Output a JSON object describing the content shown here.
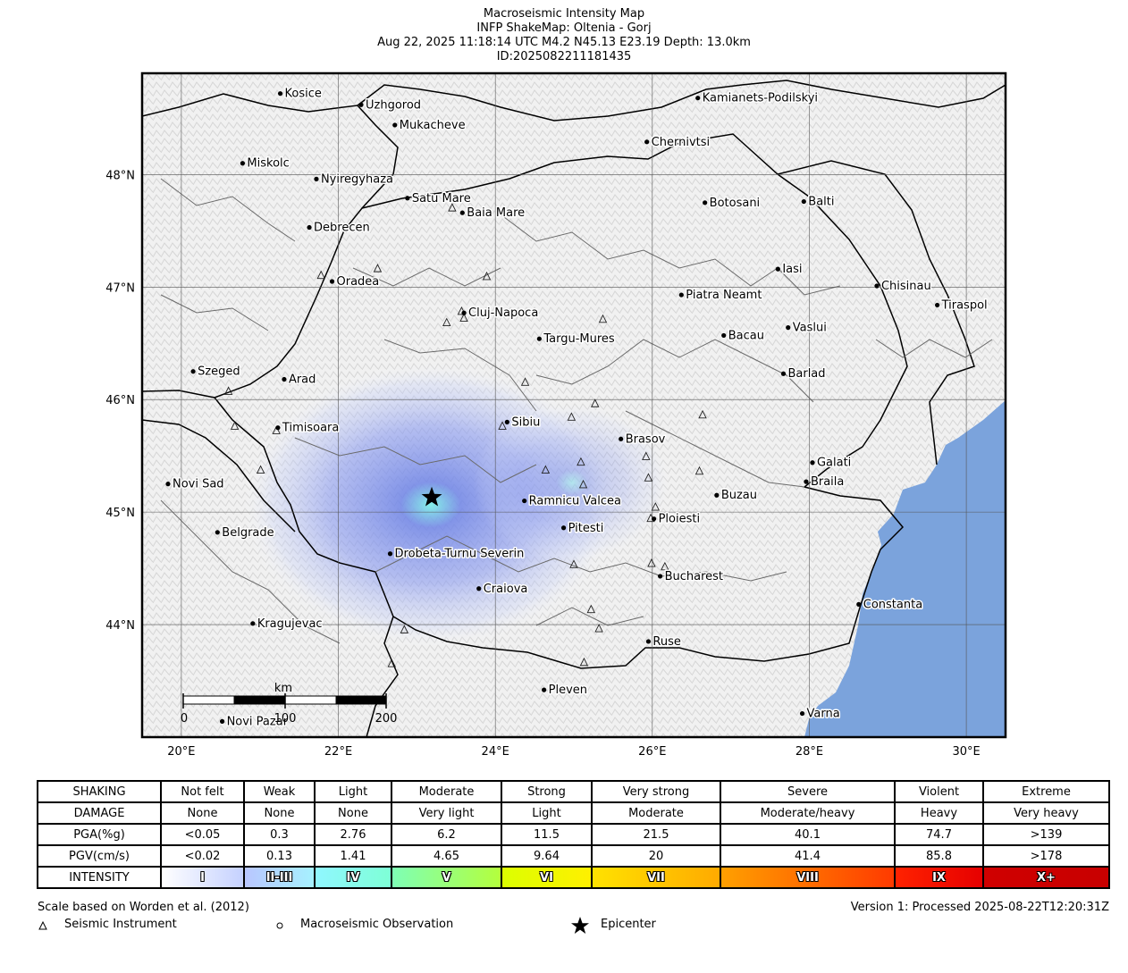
{
  "title": {
    "line1": "Macroseismic Intensity Map",
    "line2": "INFP ShakeMap: Oltenia - Gorj",
    "line3": "Aug 22, 2025 11:18:14 UTC M4.2 N45.13 E23.19 Depth: 13.0km",
    "line4": "ID:20250822111814​35"
  },
  "map": {
    "lon_range": [
      19.5,
      30.5
    ],
    "lat_range": [
      43.0,
      48.9
    ],
    "lon_ticks": [
      "20°E",
      "22°E",
      "24°E",
      "26°E",
      "28°E",
      "30°E"
    ],
    "lat_ticks": [
      "44°N",
      "45°N",
      "46°N",
      "47°N",
      "48°N"
    ],
    "epicenter": {
      "lon": 23.19,
      "lat": 45.13
    },
    "colors": {
      "sea": "#7ba3dc",
      "intensity_core": "#7ff0e8",
      "intensity_mid": "#6f84e6",
      "intensity_outer": "#c8d2f8",
      "land": "#eeeeee"
    },
    "scale_bar": {
      "unit": "km",
      "labels": [
        "0",
        "100",
        "200"
      ]
    },
    "cities": [
      {
        "name": "Kosice",
        "lon": 21.26,
        "lat": 48.72
      },
      {
        "name": "Uzhgorod",
        "lon": 22.29,
        "lat": 48.62
      },
      {
        "name": "Mukacheve",
        "lon": 22.72,
        "lat": 48.44
      },
      {
        "name": "Kamianets-Podilskyi",
        "lon": 26.58,
        "lat": 48.68
      },
      {
        "name": "Chernivtsi",
        "lon": 25.93,
        "lat": 48.29
      },
      {
        "name": "Miskolc",
        "lon": 20.78,
        "lat": 48.1
      },
      {
        "name": "Nyiregyhaza",
        "lon": 21.72,
        "lat": 47.96
      },
      {
        "name": "Satu Mare",
        "lon": 22.88,
        "lat": 47.79
      },
      {
        "name": "Baia Mare",
        "lon": 23.58,
        "lat": 47.66
      },
      {
        "name": "Botosani",
        "lon": 26.67,
        "lat": 47.75
      },
      {
        "name": "Balti",
        "lon": 27.93,
        "lat": 47.76
      },
      {
        "name": "Debrecen",
        "lon": 21.63,
        "lat": 47.53
      },
      {
        "name": "Oradea",
        "lon": 21.92,
        "lat": 47.05
      },
      {
        "name": "Iasi",
        "lon": 27.6,
        "lat": 47.16
      },
      {
        "name": "Chisinau",
        "lon": 28.86,
        "lat": 47.01
      },
      {
        "name": "Piatra Neamt",
        "lon": 26.37,
        "lat": 46.93
      },
      {
        "name": "Tiraspol",
        "lon": 29.63,
        "lat": 46.84
      },
      {
        "name": "Cluj-Napoca",
        "lon": 23.6,
        "lat": 46.77
      },
      {
        "name": "Targu-Mures",
        "lon": 24.56,
        "lat": 46.54
      },
      {
        "name": "Bacau",
        "lon": 26.91,
        "lat": 46.57
      },
      {
        "name": "Vaslui",
        "lon": 27.73,
        "lat": 46.64
      },
      {
        "name": "Szeged",
        "lon": 20.15,
        "lat": 46.25
      },
      {
        "name": "Arad",
        "lon": 21.31,
        "lat": 46.18
      },
      {
        "name": "Barlad",
        "lon": 27.67,
        "lat": 46.23
      },
      {
        "name": "Sibiu",
        "lon": 24.15,
        "lat": 45.8
      },
      {
        "name": "Timisoara",
        "lon": 21.23,
        "lat": 45.75
      },
      {
        "name": "Brasov",
        "lon": 25.6,
        "lat": 45.65
      },
      {
        "name": "Galati",
        "lon": 28.04,
        "lat": 45.44
      },
      {
        "name": "Novi Sad",
        "lon": 19.83,
        "lat": 45.25
      },
      {
        "name": "Braila",
        "lon": 27.96,
        "lat": 45.27
      },
      {
        "name": "Ramnicu Valcea",
        "lon": 24.37,
        "lat": 45.1
      },
      {
        "name": "Buzau",
        "lon": 26.82,
        "lat": 45.15
      },
      {
        "name": "Ploiesti",
        "lon": 26.02,
        "lat": 44.94
      },
      {
        "name": "Belgrade",
        "lon": 20.46,
        "lat": 44.82
      },
      {
        "name": "Pitesti",
        "lon": 24.87,
        "lat": 44.86
      },
      {
        "name": "Drobeta-Turnu Severin",
        "lon": 22.66,
        "lat": 44.63
      },
      {
        "name": "Bucharest",
        "lon": 26.1,
        "lat": 44.43
      },
      {
        "name": "Craiova",
        "lon": 23.79,
        "lat": 44.32
      },
      {
        "name": "Constanta",
        "lon": 28.63,
        "lat": 44.18
      },
      {
        "name": "Kragujevac",
        "lon": 20.91,
        "lat": 44.01
      },
      {
        "name": "Ruse",
        "lon": 25.95,
        "lat": 43.85
      },
      {
        "name": "Pleven",
        "lon": 24.62,
        "lat": 43.42
      },
      {
        "name": "Novi Pazar",
        "lon": 20.52,
        "lat": 43.14
      },
      {
        "name": "Varna",
        "lon": 27.91,
        "lat": 43.21
      }
    ],
    "stations": [
      {
        "lon": 23.45,
        "lat": 47.7
      },
      {
        "lon": 22.5,
        "lat": 47.16
      },
      {
        "lon": 21.78,
        "lat": 47.1
      },
      {
        "lon": 23.89,
        "lat": 47.09
      },
      {
        "lon": 23.57,
        "lat": 46.78
      },
      {
        "lon": 23.6,
        "lat": 46.72
      },
      {
        "lon": 23.38,
        "lat": 46.68
      },
      {
        "lon": 25.37,
        "lat": 46.71
      },
      {
        "lon": 24.38,
        "lat": 46.15
      },
      {
        "lon": 20.6,
        "lat": 46.07
      },
      {
        "lon": 25.27,
        "lat": 45.96
      },
      {
        "lon": 24.97,
        "lat": 45.84
      },
      {
        "lon": 26.64,
        "lat": 45.86
      },
      {
        "lon": 24.09,
        "lat": 45.76
      },
      {
        "lon": 20.68,
        "lat": 45.76
      },
      {
        "lon": 21.21,
        "lat": 45.72
      },
      {
        "lon": 25.92,
        "lat": 45.49
      },
      {
        "lon": 25.09,
        "lat": 45.44
      },
      {
        "lon": 24.64,
        "lat": 45.37
      },
      {
        "lon": 26.6,
        "lat": 45.36
      },
      {
        "lon": 21.01,
        "lat": 45.37
      },
      {
        "lon": 25.95,
        "lat": 45.3
      },
      {
        "lon": 25.12,
        "lat": 45.24
      },
      {
        "lon": 26.04,
        "lat": 45.04
      },
      {
        "lon": 25.98,
        "lat": 44.94
      },
      {
        "lon": 25.0,
        "lat": 44.53
      },
      {
        "lon": 26.16,
        "lat": 44.51
      },
      {
        "lon": 25.99,
        "lat": 44.54
      },
      {
        "lon": 25.22,
        "lat": 44.13
      },
      {
        "lon": 25.32,
        "lat": 43.96
      },
      {
        "lon": 22.84,
        "lat": 43.95
      },
      {
        "lon": 25.13,
        "lat": 43.66
      },
      {
        "lon": 22.68,
        "lat": 43.65
      }
    ]
  },
  "legend": {
    "row_headers": [
      "SHAKING",
      "DAMAGE",
      "PGA(%g)",
      "PGV(cm/s)",
      "INTENSITY"
    ],
    "columns": [
      {
        "shaking": "Not felt",
        "damage": "None",
        "pga": "<0.05",
        "pgv": "<0.02",
        "intensity": "I",
        "color": "#ffffff",
        "color_end": "#c5d1ff"
      },
      {
        "shaking": "Weak",
        "damage": "None",
        "pga": "0.3",
        "pgv": "0.13",
        "intensity": "II-III",
        "color": "#b9c6ff",
        "color_end": "#a6f1ff"
      },
      {
        "shaking": "Light",
        "damage": "None",
        "pga": "2.76",
        "pgv": "1.41",
        "intensity": "IV",
        "color": "#90f7ff",
        "color_end": "#7effd6"
      },
      {
        "shaking": "Moderate",
        "damage": "Very light",
        "pga": "6.2",
        "pgv": "4.65",
        "intensity": "V",
        "color": "#7effb6",
        "color_end": "#b4ff3c"
      },
      {
        "shaking": "Strong",
        "damage": "Light",
        "pga": "11.5",
        "pgv": "9.64",
        "intensity": "VI",
        "color": "#dcff00",
        "color_end": "#fff000"
      },
      {
        "shaking": "Very strong",
        "damage": "Moderate",
        "pga": "21.5",
        "pgv": "20",
        "intensity": "VII",
        "color": "#ffe200",
        "color_end": "#ffaa00"
      },
      {
        "shaking": "Severe",
        "damage": "Moderate/heavy",
        "pga": "40.1",
        "pgv": "41.4",
        "intensity": "VIII",
        "color": "#ffa000",
        "color_end": "#ff3a00"
      },
      {
        "shaking": "Violent",
        "damage": "Heavy",
        "pga": "74.7",
        "pgv": "85.8",
        "intensity": "IX",
        "color": "#ff2200",
        "color_end": "#e60000"
      },
      {
        "shaking": "Extreme",
        "damage": "Very heavy",
        "pga": ">139",
        "pgv": ">178",
        "intensity": "X+",
        "color": "#d00000",
        "color_end": "#c80000"
      }
    ]
  },
  "footer": {
    "scale_note": "Scale based on Worden et al. (2012)",
    "version": "Version 1: Processed 2025-08-22T12:20:31Z",
    "seismic_instrument": "Seismic Instrument",
    "macroseismic_observation": "Macroseismic Observation",
    "epicenter": "Epicenter"
  }
}
